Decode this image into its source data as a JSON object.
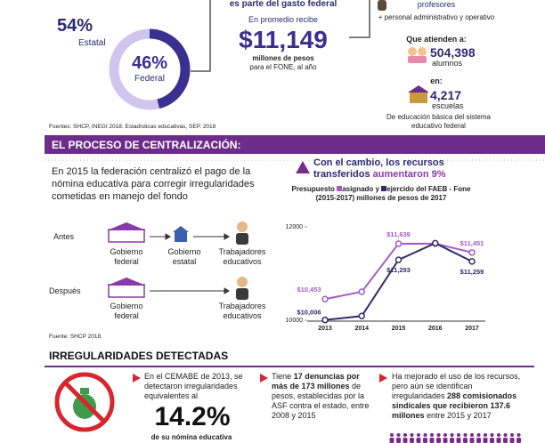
{
  "top": {
    "donut": {
      "estatal": {
        "value": 54,
        "value_label": "54%",
        "label": "Estatal"
      },
      "federal": {
        "value": 46,
        "value_label": "46%",
        "label": "Federal"
      }
    },
    "gasto": {
      "lead": "es parte del gasto federal",
      "intro": "En promedio recibe",
      "amount": "$11,149",
      "unit": "millones de pesos",
      "detail": "para el FONE, al año"
    },
    "personal": {
      "profesores": "profesores",
      "extra": "+ personal administrativo y operativo",
      "atienden": "Que atienden a:",
      "alumnos_value": "504,398",
      "alumnos_label": "alumnos",
      "en": "en:",
      "escuelas_value": "4,217",
      "escuelas_label": "escuelas",
      "nivel": "De educación básica del sistema educativo federal"
    },
    "source": "Fuentes: SHCP, INEGI 2018.  Estadísticas educativas, SEP. 2018"
  },
  "centralizacion": {
    "header": "EL PROCESO DE CENTRALIZACIÓN:",
    "intro": "En 2015 la federación centralizó el pago de la nómina educativa para corregir irregularidades cometidas en manejo del fondo",
    "antes": {
      "label": "Antes",
      "nodes": [
        "Gobierno federal",
        "Gobierno estatal",
        "Trabajadores educativos"
      ]
    },
    "despues": {
      "label": "Después",
      "nodes": [
        "Gobierno federal",
        "Trabajadores educativos"
      ]
    },
    "change": {
      "text": "Con el cambio, los recursos transferidos",
      "highlight": "aumentaron 9%"
    },
    "source": "Fuente: SHCP 2018."
  },
  "chart_data": {
    "type": "line",
    "title": [
      "Presupuesto",
      "y",
      "del FAEB - Fone (2015-2017) millones de pesos de 2017"
    ],
    "categories": [
      "2013",
      "2014",
      "2015",
      "2016",
      "2017"
    ],
    "ylim": [
      10000,
      12000
    ],
    "yticks": [
      10000,
      12000
    ],
    "series": [
      {
        "name": "asignado",
        "color": "#a45bc6",
        "values": [
          10453,
          10610,
          11639,
          11640,
          11451
        ],
        "value_labels": [
          "$10,453",
          null,
          "$11,639",
          null,
          "$11,451"
        ]
      },
      {
        "name": "ejercido",
        "color": "#2e2a6e",
        "values": [
          10006,
          10090,
          11293,
          11650,
          11259
        ],
        "value_labels": [
          "$10,006",
          null,
          "$11,293",
          null,
          "$11,259"
        ]
      }
    ]
  },
  "irregularidades": {
    "header": "IRREGULARIDADES DETECTADAS",
    "cemabe": {
      "text": "En el CEMABE de 2013, se detectaron irregularidades equivalentes al",
      "figure": "14.2%",
      "caption": "de su nómina educativa"
    },
    "denuncias": {
      "parts": [
        {
          "text": "Tiene "
        },
        {
          "text": "17 denuncias por más de 173 millones",
          "bold": true
        },
        {
          "text": " de pesos, establecidas por la ASF contra el estado, entre 2008 y 2015"
        }
      ]
    },
    "comisionados": {
      "parts": [
        {
          "text": "Ha mejorado el uso de los recursos, pero aún se identifican irregularidades "
        },
        {
          "text": "288 comisionados sindicales que recibieron 137.6 millones",
          "bold": true
        },
        {
          "text": " entre 2015 y 2017"
        }
      ]
    }
  }
}
